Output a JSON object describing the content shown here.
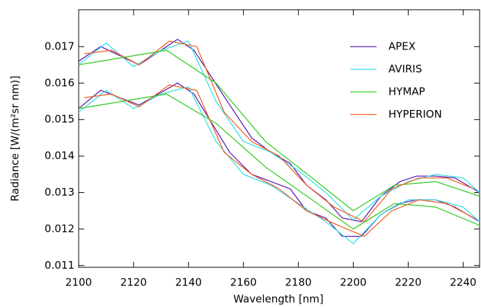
{
  "chart_data": {
    "type": "line",
    "x_label": "Wavelength [nm]",
    "y_label": "Radiance [W/(m²sr nm)]",
    "xlim": [
      2100,
      2246
    ],
    "xticks": [
      2100,
      2120,
      2140,
      2160,
      2180,
      2200,
      2220,
      2240
    ],
    "ylim": [
      0.01095,
      0.01801
    ],
    "yticks": [
      0.011,
      0.012,
      0.013,
      0.014,
      0.015,
      0.016,
      0.017
    ],
    "legend": "upper right",
    "series": [
      {
        "name": "APEX",
        "color": "#5a1ab0",
        "x": [
          2100,
          2108,
          2122,
          2136,
          2142,
          2155,
          2163,
          2170,
          2177,
          2183,
          2190,
          2196,
          2203,
          2210,
          2217,
          2223,
          2230,
          2237,
          2246
        ],
        "values": [
          0.0166,
          0.017,
          0.0165,
          0.0172,
          0.0169,
          0.0154,
          0.0145,
          0.0141,
          0.0138,
          0.0132,
          0.0128,
          0.0123,
          0.0122,
          0.0129,
          0.0133,
          0.01345,
          0.01345,
          0.0134,
          0.013
        ],
        "lower": [
          0.0153,
          0.0158,
          0.0154,
          0.016,
          0.0157,
          0.0141,
          0.0135,
          0.0133,
          0.0131,
          0.0125,
          0.0123,
          0.0118,
          0.0118,
          0.0124,
          0.0127,
          0.0128,
          0.0128,
          0.0126,
          0.0122
        ]
      },
      {
        "name": "AVIRIS",
        "color": "#33e0e8",
        "x": [
          2100,
          2110,
          2120,
          2130,
          2140,
          2150,
          2160,
          2170,
          2180,
          2190,
          2200,
          2210,
          2220,
          2230,
          2240,
          2246
        ],
        "values": [
          0.0165,
          0.0171,
          0.01645,
          0.0169,
          0.01715,
          0.0155,
          0.0144,
          0.0141,
          0.0136,
          0.013,
          0.01225,
          0.0129,
          0.0133,
          0.0135,
          0.0134,
          0.013
        ],
        "lower": [
          0.0152,
          0.0158,
          0.0153,
          0.0157,
          0.0159,
          0.0144,
          0.0135,
          0.0132,
          0.0127,
          0.0122,
          0.0116,
          0.0124,
          0.0128,
          0.0128,
          0.0126,
          0.0122
        ]
      },
      {
        "name": "HYMAP",
        "color": "#33cc22",
        "x": [
          2100,
          2132,
          2150,
          2168,
          2185,
          2200,
          2215,
          2230,
          2246
        ],
        "values": [
          0.0165,
          0.0169,
          0.016,
          0.0144,
          0.0134,
          0.0125,
          0.0132,
          0.0133,
          0.0129
        ],
        "lower": [
          0.0153,
          0.0157,
          0.0149,
          0.0137,
          0.0128,
          0.012,
          0.0127,
          0.0126,
          0.0121
        ]
      },
      {
        "name": "HYPERION",
        "color": "#f06020",
        "x": [
          2102,
          2112,
          2122,
          2133,
          2143,
          2153,
          2163,
          2173,
          2183,
          2193,
          2204,
          2214,
          2224,
          2234,
          2244
        ],
        "values": [
          0.0168,
          0.0169,
          0.0165,
          0.01715,
          0.017,
          0.0152,
          0.0144,
          0.014,
          0.0132,
          0.0126,
          0.0122,
          0.0131,
          0.0134,
          0.0134,
          0.0131
        ],
        "lower": [
          0.0156,
          0.0157,
          0.01535,
          0.01595,
          0.0158,
          0.0141,
          0.0135,
          0.0131,
          0.0125,
          0.01215,
          0.0118,
          0.0125,
          0.0128,
          0.0127,
          0.0123
        ]
      }
    ]
  }
}
